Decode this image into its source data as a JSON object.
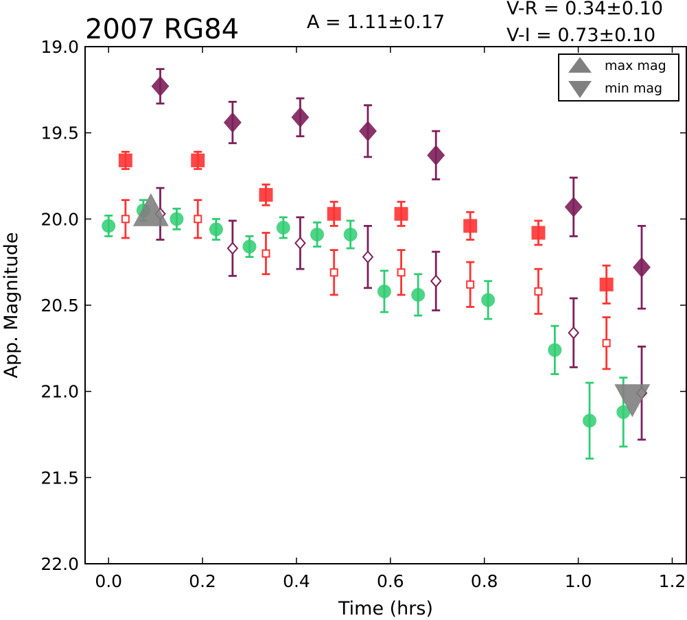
{
  "chart_data": {
    "type": "scatter",
    "title": "2007 RG84",
    "annotations": {
      "amplitude": "A  = 1.11±0.17",
      "v_r": "V-R = 0.34±0.10",
      "v_i": "V-I  = 0.73±0.10"
    },
    "xlabel": "Time (hrs)",
    "ylabel": "App. Magnitude",
    "xlim": [
      -0.05,
      1.23
    ],
    "ylim": [
      22.0,
      19.0
    ],
    "y_inverted": true,
    "xticks": [
      "0.0",
      "0.2",
      "0.4",
      "0.6",
      "0.8",
      "1.0",
      "1.2"
    ],
    "yticks": [
      "19.0",
      "19.5",
      "20.0",
      "20.5",
      "21.0",
      "21.5",
      "22.0"
    ],
    "grid": false,
    "legend": {
      "placement": "top-right",
      "entries": [
        {
          "label": "max mag",
          "marker": "triangle-up",
          "color": "#808080"
        },
        {
          "label": "min mag",
          "marker": "triangle-down",
          "color": "#808080"
        }
      ]
    },
    "colors": {
      "green": "#2ecc71",
      "red": "#ff3333",
      "purple": "#7d1f5a",
      "marker_gray": "#808080"
    },
    "series": [
      {
        "color": "green",
        "marker": "circle",
        "fill": "filled",
        "points": [
          {
            "x": 0.0,
            "y": 20.04,
            "err": 0.06
          },
          {
            "x": 0.074,
            "y": 19.95,
            "err": 0.06
          },
          {
            "x": 0.145,
            "y": 20.0,
            "err": 0.06
          },
          {
            "x": 0.229,
            "y": 20.06,
            "err": 0.06
          },
          {
            "x": 0.3,
            "y": 20.16,
            "err": 0.06
          },
          {
            "x": 0.372,
            "y": 20.05,
            "err": 0.06
          },
          {
            "x": 0.444,
            "y": 20.09,
            "err": 0.07
          },
          {
            "x": 0.515,
            "y": 20.09,
            "err": 0.08
          },
          {
            "x": 0.587,
            "y": 20.42,
            "err": 0.12
          },
          {
            "x": 0.659,
            "y": 20.44,
            "err": 0.12
          },
          {
            "x": 0.808,
            "y": 20.47,
            "err": 0.11
          },
          {
            "x": 0.95,
            "y": 20.76,
            "err": 0.14
          },
          {
            "x": 1.024,
            "y": 21.17,
            "err": 0.22
          },
          {
            "x": 1.096,
            "y": 21.12,
            "err": 0.2
          }
        ]
      },
      {
        "color": "red",
        "marker": "square",
        "fill": "filled",
        "points": [
          {
            "x": 0.036,
            "y": 19.66,
            "err": 0.05
          },
          {
            "x": 0.19,
            "y": 19.66,
            "err": 0.05
          },
          {
            "x": 0.335,
            "y": 19.86,
            "err": 0.06
          },
          {
            "x": 0.48,
            "y": 19.97,
            "err": 0.07
          },
          {
            "x": 0.623,
            "y": 19.97,
            "err": 0.07
          },
          {
            "x": 0.77,
            "y": 20.04,
            "err": 0.08
          },
          {
            "x": 0.915,
            "y": 20.08,
            "err": 0.07
          },
          {
            "x": 1.06,
            "y": 20.38,
            "err": 0.11
          }
        ]
      },
      {
        "color": "red",
        "marker": "square",
        "fill": "open",
        "points": [
          {
            "x": 0.036,
            "y": 20.0,
            "err": 0.11
          },
          {
            "x": 0.19,
            "y": 20.0,
            "err": 0.11
          },
          {
            "x": 0.335,
            "y": 20.2,
            "err": 0.12
          },
          {
            "x": 0.48,
            "y": 20.31,
            "err": 0.13
          },
          {
            "x": 0.623,
            "y": 20.31,
            "err": 0.13
          },
          {
            "x": 0.77,
            "y": 20.38,
            "err": 0.13
          },
          {
            "x": 0.915,
            "y": 20.42,
            "err": 0.13
          },
          {
            "x": 1.06,
            "y": 20.72,
            "err": 0.15
          }
        ]
      },
      {
        "color": "purple",
        "marker": "diamond",
        "fill": "filled",
        "points": [
          {
            "x": 0.11,
            "y": 19.23,
            "err": 0.1
          },
          {
            "x": 0.264,
            "y": 19.44,
            "err": 0.12
          },
          {
            "x": 0.408,
            "y": 19.41,
            "err": 0.11
          },
          {
            "x": 0.552,
            "y": 19.49,
            "err": 0.15
          },
          {
            "x": 0.697,
            "y": 19.63,
            "err": 0.14
          },
          {
            "x": 0.99,
            "y": 19.93,
            "err": 0.17
          },
          {
            "x": 1.135,
            "y": 20.28,
            "err": 0.24
          }
        ]
      },
      {
        "color": "purple",
        "marker": "diamond",
        "fill": "open",
        "points": [
          {
            "x": 0.11,
            "y": 19.97,
            "err": 0.15
          },
          {
            "x": 0.264,
            "y": 20.17,
            "err": 0.16
          },
          {
            "x": 0.408,
            "y": 20.14,
            "err": 0.15
          },
          {
            "x": 0.552,
            "y": 20.22,
            "err": 0.18
          },
          {
            "x": 0.697,
            "y": 20.36,
            "err": 0.17
          },
          {
            "x": 0.99,
            "y": 20.66,
            "err": 0.2
          },
          {
            "x": 1.135,
            "y": 21.01,
            "err": 0.27
          }
        ]
      }
    ],
    "extrema": [
      {
        "label": "max mag",
        "marker": "triangle-up",
        "x": 0.09,
        "y": 19.97
      },
      {
        "label": "min mag",
        "marker": "triangle-down",
        "x": 1.115,
        "y": 21.03
      }
    ]
  }
}
